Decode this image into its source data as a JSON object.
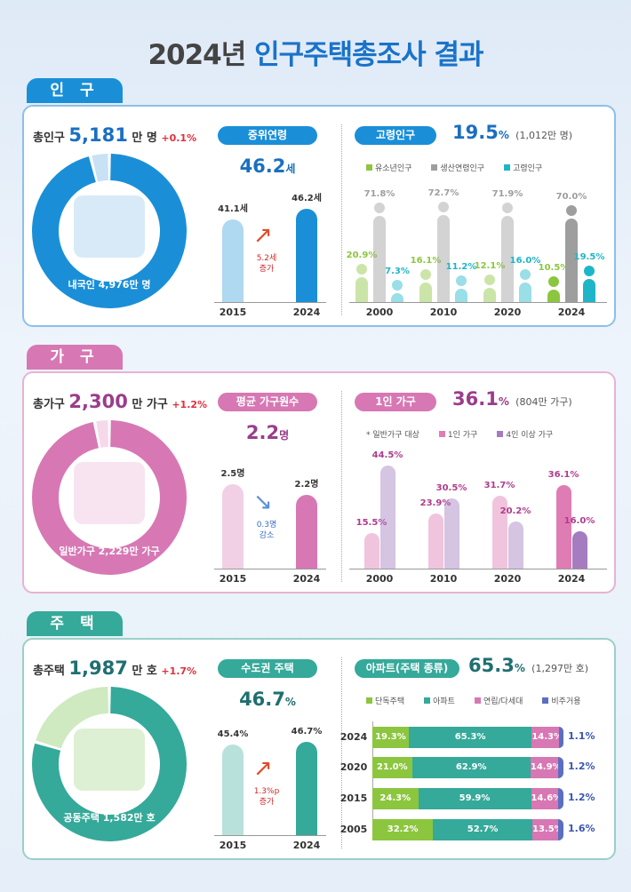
{
  "title": {
    "year": "2024년",
    "rest": "인구주택총조사 결과"
  },
  "colors": {
    "population": "#1a8fd8",
    "household": "#d778b4",
    "housing": "#35a99a"
  },
  "population": {
    "tab": "인 구",
    "summary": {
      "label": "총인구",
      "value": "5,181",
      "unit": "만 명",
      "change": "+0.1%"
    },
    "donut": {
      "label": "내국인 4,976만 명",
      "fraction": 0.96
    },
    "median": {
      "pill": "중위연령",
      "value": "46.2",
      "unit": "세",
      "annotation": [
        "5.2세",
        "증가"
      ]
    },
    "elderly": {
      "pill": "고령인구",
      "value": "19.5",
      "unit": "%",
      "note": "(1,012만 명)"
    }
  },
  "household": {
    "tab": "가 구",
    "summary": {
      "label": "총가구",
      "value": "2,300",
      "unit": "만 가구",
      "change": "+1.2%"
    },
    "donut": {
      "label": "일반가구 2,229만 가구",
      "fraction": 0.969
    },
    "avg": {
      "pill": "평균 가구원수",
      "value": "2.2",
      "unit": "명",
      "annotation": [
        "0.3명",
        "감소"
      ]
    },
    "single": {
      "pill": "1인 가구",
      "value": "36.1",
      "unit": "%",
      "note": "(804만 가구)",
      "footnote": "* 일반가구 대상"
    }
  },
  "housing": {
    "tab": "주 택",
    "summary": {
      "label": "총주택",
      "value": "1,987",
      "unit": "만 호",
      "change": "+1.7%"
    },
    "donut": {
      "label": "공동주택 1,582만 호",
      "fraction": 0.796
    },
    "capital": {
      "pill": "수도권 주택",
      "value": "46.7",
      "unit": "%",
      "annotation": [
        "1.3%p",
        "증가"
      ]
    },
    "apt": {
      "pill": "아파트(주택 종류)",
      "value": "65.3",
      "unit": "%",
      "note": "(1,297만 호)"
    }
  },
  "chart_data": [
    {
      "type": "bar",
      "id": "median_age",
      "categories": [
        "2015",
        "2024"
      ],
      "values": [
        41.1,
        46.2
      ],
      "labels": [
        "41.1세",
        "46.2세"
      ]
    },
    {
      "type": "bar",
      "id": "age_structure",
      "categories": [
        "2000",
        "2010",
        "2020",
        "2024"
      ],
      "series": [
        {
          "name": "유소년인구",
          "values": [
            20.9,
            16.1,
            12.1,
            10.5
          ],
          "color": "#8cc63f"
        },
        {
          "name": "생산연령인구",
          "values": [
            71.8,
            72.7,
            71.9,
            70.0
          ],
          "color": "#9e9e9e"
        },
        {
          "name": "고령인구",
          "values": [
            7.3,
            11.2,
            16.0,
            19.5
          ],
          "color": "#1fb5c9"
        }
      ]
    },
    {
      "type": "bar",
      "id": "avg_household_size",
      "categories": [
        "2015",
        "2024"
      ],
      "values": [
        2.5,
        2.2
      ],
      "labels": [
        "2.5명",
        "2.2명"
      ]
    },
    {
      "type": "bar",
      "id": "household_size",
      "categories": [
        "2000",
        "2010",
        "2020",
        "2024"
      ],
      "series": [
        {
          "name": "1인 가구",
          "values": [
            15.5,
            23.9,
            31.7,
            36.1
          ],
          "color": "#e07cb4"
        },
        {
          "name": "4인 이상 가구",
          "values": [
            44.5,
            30.5,
            20.2,
            16.0
          ],
          "color": "#a57cc0"
        }
      ]
    },
    {
      "type": "bar",
      "id": "capital_housing",
      "categories": [
        "2015",
        "2024"
      ],
      "values": [
        45.4,
        46.7
      ],
      "labels": [
        "45.4%",
        "46.7%"
      ]
    },
    {
      "type": "bar",
      "stacked": true,
      "orientation": "horizontal",
      "id": "housing_type",
      "categories": [
        "2024",
        "2020",
        "2015",
        "2005"
      ],
      "series": [
        {
          "name": "단독주택",
          "values": [
            19.3,
            21.0,
            24.3,
            32.2
          ],
          "color": "#8cc63f"
        },
        {
          "name": "아파트",
          "values": [
            65.3,
            62.9,
            59.9,
            52.7
          ],
          "color": "#35a99a"
        },
        {
          "name": "연립/다세대",
          "values": [
            14.3,
            14.9,
            14.6,
            13.5
          ],
          "color": "#d778b4"
        },
        {
          "name": "비주거용",
          "values": [
            1.1,
            1.2,
            1.2,
            1.6
          ],
          "color": "#5a6fc0"
        }
      ]
    }
  ]
}
